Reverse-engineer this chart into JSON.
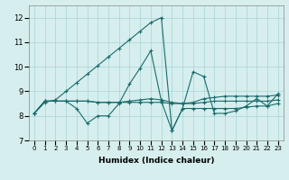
{
  "xlabel": "Humidex (Indice chaleur)",
  "xlim": [
    -0.5,
    23.5
  ],
  "ylim": [
    7,
    12.5
  ],
  "yticks": [
    7,
    8,
    9,
    10,
    11,
    12
  ],
  "xticks": [
    0,
    1,
    2,
    3,
    4,
    5,
    6,
    7,
    8,
    9,
    10,
    11,
    12,
    13,
    14,
    15,
    16,
    17,
    18,
    19,
    20,
    21,
    22,
    23
  ],
  "background_color": "#d6eeee",
  "grid_color": "#b0d8d8",
  "line_color": "#1a6b6b",
  "lines": [
    [
      8.1,
      8.55,
      8.65,
      9.0,
      9.35,
      9.7,
      10.05,
      10.4,
      10.75,
      11.1,
      11.45,
      11.8,
      12.0,
      7.4,
      8.3,
      8.3,
      8.3,
      8.3,
      8.3,
      8.3,
      8.35,
      8.4,
      8.4,
      8.5
    ],
    [
      8.1,
      8.6,
      8.6,
      8.6,
      8.3,
      7.7,
      8.0,
      8.0,
      8.5,
      9.3,
      9.95,
      10.65,
      8.6,
      7.4,
      8.3,
      9.8,
      9.6,
      8.1,
      8.1,
      8.2,
      8.4,
      8.7,
      8.4,
      8.9
    ],
    [
      8.1,
      8.6,
      8.6,
      8.6,
      8.6,
      8.6,
      8.55,
      8.55,
      8.55,
      8.6,
      8.65,
      8.7,
      8.65,
      8.55,
      8.5,
      8.55,
      8.7,
      8.75,
      8.8,
      8.8,
      8.8,
      8.8,
      8.8,
      8.85
    ],
    [
      8.1,
      8.6,
      8.6,
      8.6,
      8.6,
      8.6,
      8.55,
      8.55,
      8.55,
      8.55,
      8.55,
      8.55,
      8.55,
      8.5,
      8.5,
      8.5,
      8.55,
      8.6,
      8.6,
      8.6,
      8.6,
      8.6,
      8.6,
      8.65
    ]
  ]
}
